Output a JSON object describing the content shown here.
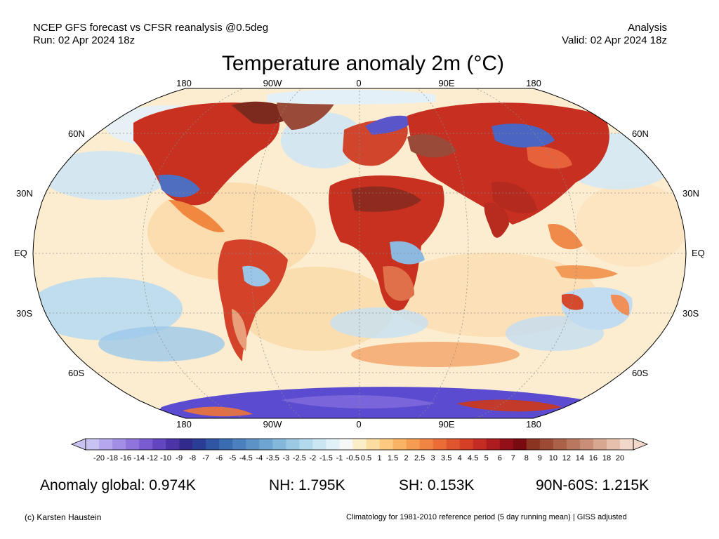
{
  "header": {
    "line1_left": "NCEP GFS forecast vs CFSR reanalysis @0.5deg",
    "line2_left": "Run: 02 Apr 2024 18z",
    "line1_right": "Analysis",
    "line2_right": "Valid: 02 Apr 2024 18z"
  },
  "title": "Temperature anomaly 2m (°C)",
  "map": {
    "projection": "Robinson",
    "lon_labels": [
      "180",
      "90W",
      "0",
      "90E",
      "180"
    ],
    "lat_labels": [
      "60N",
      "30N",
      "EQ",
      "30S",
      "60S"
    ]
  },
  "colorbar": {
    "labels": [
      "-20",
      "-18",
      "-16",
      "-14",
      "-12",
      "-10",
      "-9",
      "-8",
      "-7",
      "-6",
      "-5",
      "-4.5",
      "-4",
      "-3.5",
      "-3",
      "-2.5",
      "-2",
      "-1.5",
      "-1",
      "-0.5",
      "0.5",
      "1",
      "1.5",
      "2",
      "2.5",
      "3",
      "3.5",
      "4",
      "4.5",
      "5",
      "6",
      "7",
      "8",
      "9",
      "10",
      "12",
      "14",
      "16",
      "18",
      "20"
    ],
    "colors": [
      "#c8c3f0",
      "#b6a6ee",
      "#a38ee6",
      "#8f74dc",
      "#7a5bd0",
      "#6246bf",
      "#4c33a8",
      "#322b8e",
      "#2a3d96",
      "#2f55a3",
      "#3a6cb2",
      "#4a80bd",
      "#5c93c7",
      "#6fa6d1",
      "#84b8da",
      "#9bc9e3",
      "#b3d9ec",
      "#cbe6f3",
      "#e1f1f8",
      "#f7f7f7",
      "#faedc8",
      "#fbdda2",
      "#fbc97f",
      "#f9b364",
      "#f59c52",
      "#f08443",
      "#ea6c37",
      "#e0552e",
      "#d34026",
      "#c32c22",
      "#ad1c1e",
      "#941019",
      "#7a0a12",
      "#8c3422",
      "#9c4a33",
      "#ab6048",
      "#ba775f",
      "#c98e77",
      "#d8a791",
      "#e6c0ad",
      "#f2d8cb"
    ]
  },
  "stats": {
    "global": "Anomaly global: 0.974K",
    "nh": "NH: 1.795K",
    "sh": "SH: 0.153K",
    "arctic": "90N-60S: 1.215K"
  },
  "footer": {
    "left": "(c) Karsten Haustein",
    "right": "Climatology for 1981-2010 reference period (5 day running mean) | GISS adjusted"
  }
}
